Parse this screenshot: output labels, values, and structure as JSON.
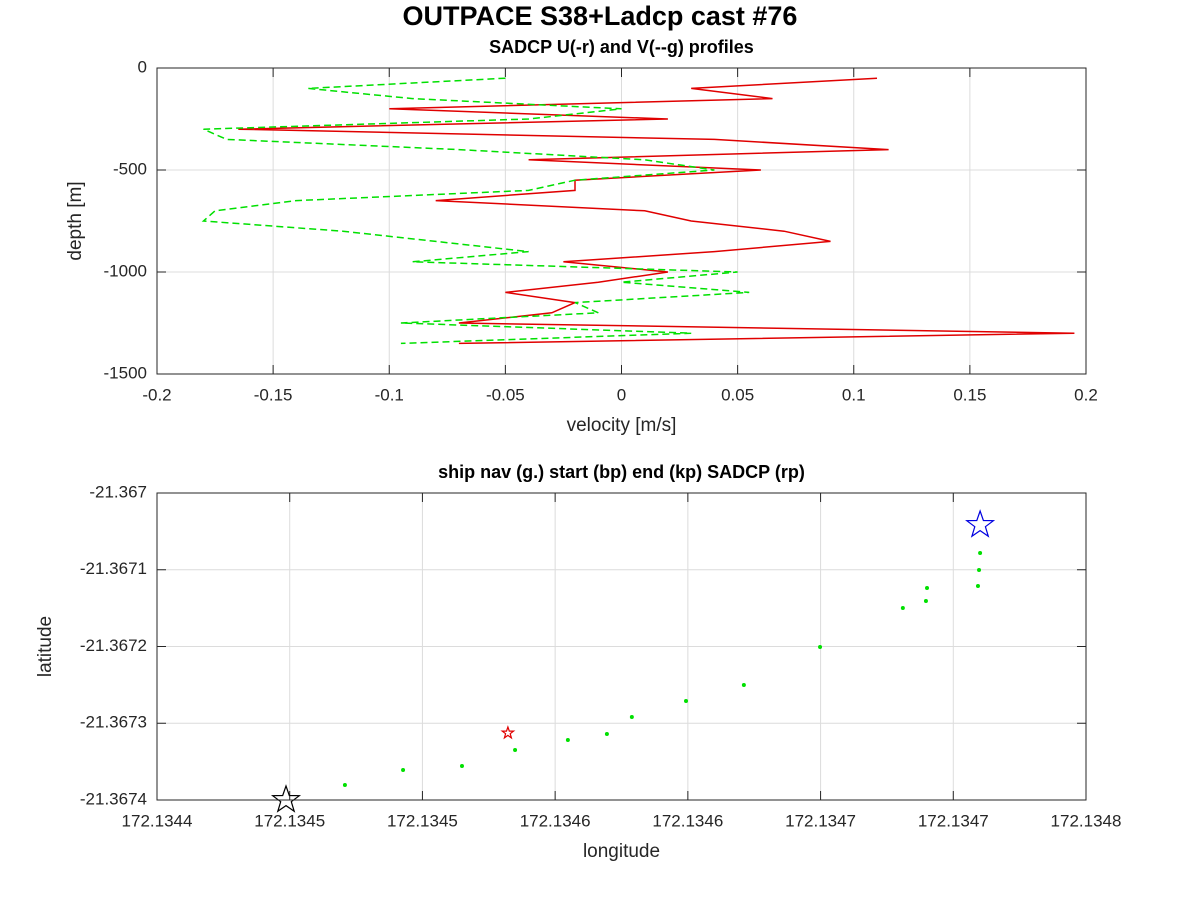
{
  "title": "OUTPACE S38+Ladcp cast #76",
  "chart_data": [
    {
      "type": "profile",
      "title": "SADCP U(-r) and V(--g) profiles",
      "xlabel": "velocity [m/s]",
      "ylabel": "depth [m]",
      "depths": [
        -50,
        -100,
        -150,
        -200,
        -250,
        -300,
        -350,
        -400,
        -450,
        -500,
        -550,
        -600,
        -650,
        -700,
        -750,
        -800,
        -850,
        -900,
        -950,
        -1000,
        -1050,
        -1100,
        -1150,
        -1200,
        -1250,
        -1300,
        -1350
      ],
      "series": [
        {
          "color": "#e00000",
          "dash": false,
          "values": [
            0.11,
            0.03,
            0.065,
            -0.1,
            0.02,
            -0.165,
            0.04,
            0.115,
            -0.04,
            0.06,
            -0.02,
            -0.02,
            -0.08,
            0.01,
            0.03,
            0.07,
            0.09,
            0.04,
            -0.025,
            0.02,
            -0.01,
            -0.05,
            -0.02,
            -0.03,
            -0.07,
            0.195,
            -0.07
          ]
        },
        {
          "color": "#00e000",
          "dash": true,
          "values": [
            -0.05,
            -0.135,
            -0.09,
            0.0,
            -0.04,
            -0.18,
            -0.17,
            -0.07,
            0.01,
            0.04,
            -0.02,
            -0.04,
            -0.14,
            -0.175,
            -0.18,
            -0.12,
            -0.08,
            -0.04,
            -0.09,
            0.05,
            0.0,
            0.055,
            -0.02,
            -0.01,
            -0.095,
            0.03,
            -0.095
          ]
        }
      ],
      "xlim": [
        -0.2,
        0.2
      ],
      "xticks": [
        -0.2,
        -0.15,
        -0.1,
        -0.05,
        0,
        0.05,
        0.1,
        0.15,
        0.2
      ],
      "ylim": [
        -1500,
        0
      ],
      "yticks": [
        -1500,
        -1000,
        -500,
        0
      ],
      "grid": true
    },
    {
      "type": "scatter",
      "title": "ship nav (g.) start (bp) end (kp) SADCP (rp)",
      "xlabel": "longitude",
      "ylabel": "latitude",
      "series": [
        {
          "color": "#00e000",
          "marker": "dot",
          "size": 2,
          "x": [
            172.1344708,
            172.1344927,
            172.1345149,
            172.1345349,
            172.1345548,
            172.1345695,
            172.1345789,
            172.1345993,
            172.1346211,
            172.1346498,
            172.134681,
            172.1346897,
            172.1346901,
            172.1347093,
            172.1347097,
            172.1347101
          ],
          "values": [
            -21.3673805,
            -21.3673609,
            -21.3673557,
            -21.3673349,
            -21.3673218,
            -21.367314,
            -21.3672919,
            -21.367271,
            -21.3672502,
            -21.3672007,
            -21.3671498,
            -21.3671407,
            -21.3671238,
            -21.3671212,
            -21.3671003,
            -21.3670782
          ]
        },
        {
          "color": "#0000e0",
          "marker": "star",
          "size": 14,
          "x": [
            172.1347101
          ],
          "values": [
            -21.3670417
          ]
        },
        {
          "color": "#000000",
          "marker": "star",
          "size": 14,
          "x": [
            172.1344486
          ],
          "values": [
            -21.3674
          ]
        },
        {
          "color": "#e00000",
          "marker": "star",
          "size": 6,
          "x": [
            172.1345322
          ],
          "values": [
            -21.3673127
          ]
        }
      ],
      "xlim": [
        172.1344,
        172.13475
      ],
      "xticks": [
        172.1344,
        {
          "value": 172.13445,
          "label": "172.1345"
        },
        {
          "value": 172.1345,
          "label": "172.1345"
        },
        {
          "value": 172.13455,
          "label": "172.1346"
        },
        {
          "value": 172.1346,
          "label": "172.1346"
        },
        {
          "value": 172.13465,
          "label": "172.1347"
        },
        {
          "value": 172.1347,
          "label": "172.1347"
        },
        {
          "value": 172.13475,
          "label": "172.1348"
        }
      ],
      "ylim": [
        -21.3674,
        -21.367
      ],
      "yticks": [
        -21.3674,
        -21.3673,
        -21.3672,
        -21.3671,
        -21.367
      ],
      "grid": true
    }
  ]
}
